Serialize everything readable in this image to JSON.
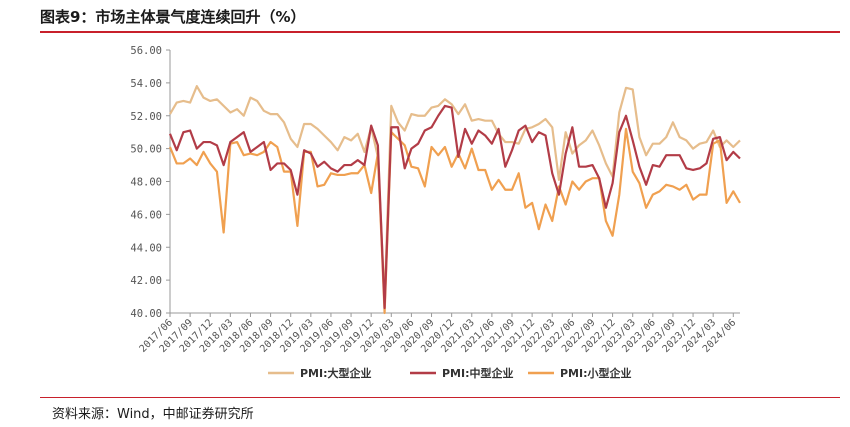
{
  "figure": {
    "title": "图表9：市场主体景气度连续回升（%）",
    "source": "资料来源：Wind，中邮证券研究所"
  },
  "chart_data": {
    "type": "line",
    "ylim": [
      40,
      56
    ],
    "yticks": [
      "56.00",
      "54.00",
      "52.00",
      "50.00",
      "48.00",
      "46.00",
      "44.00",
      "42.00",
      "40.00"
    ],
    "xtick_labels": [
      "2017/06",
      "2017/09",
      "2017/12",
      "2018/03",
      "2018/06",
      "2018/09",
      "2018/12",
      "2019/03",
      "2019/06",
      "2019/09",
      "2019/12",
      "2020/03",
      "2020/06",
      "2020/09",
      "2020/12",
      "2021/03",
      "2021/06",
      "2021/09",
      "2021/12",
      "2022/03",
      "2022/06",
      "2022/09",
      "2022/12",
      "2023/03",
      "2023/06",
      "2023/09",
      "2023/12",
      "2024/03",
      "2024/06"
    ],
    "legend_position": "bottom",
    "grid": false,
    "colors": {
      "large": "#e6bd8c",
      "medium": "#b23c47",
      "small": "#f0a050"
    },
    "series": [
      {
        "name": "PMI:大型企业",
        "key": "large",
        "values": [
          52.1,
          52.8,
          52.9,
          52.8,
          53.8,
          53.1,
          52.9,
          53.0,
          52.6,
          52.2,
          52.4,
          52.0,
          53.1,
          52.9,
          52.3,
          52.1,
          52.1,
          51.6,
          50.6,
          50.1,
          51.5,
          51.5,
          51.2,
          50.8,
          50.4,
          49.9,
          50.7,
          50.5,
          50.9,
          49.8,
          51.3,
          49.5,
          40.8,
          52.6,
          51.6,
          51.1,
          52.1,
          52.0,
          52.0,
          52.5,
          52.6,
          53.0,
          52.7,
          52.1,
          52.7,
          51.7,
          51.8,
          51.7,
          51.7,
          50.9,
          50.4,
          50.4,
          50.3,
          51.2,
          51.3,
          51.5,
          51.8,
          51.3,
          48.1,
          51.0,
          49.7,
          50.2,
          50.5,
          51.1,
          50.2,
          49.1,
          48.3,
          52.2,
          53.7,
          53.6,
          50.7,
          49.6,
          50.3,
          50.3,
          50.7,
          51.6,
          50.7,
          50.5,
          50.0,
          50.3,
          50.4,
          51.1,
          50.1,
          50.5,
          50.1,
          50.5
        ]
      },
      {
        "name": "PMI:中型企业",
        "key": "medium",
        "values": [
          50.9,
          49.9,
          51.0,
          51.1,
          50.0,
          50.4,
          50.4,
          50.2,
          49.0,
          50.4,
          50.7,
          51.0,
          49.8,
          50.1,
          50.4,
          48.7,
          49.1,
          49.1,
          48.7,
          47.2,
          49.9,
          49.7,
          48.9,
          49.2,
          48.8,
          48.6,
          49.0,
          49.0,
          49.3,
          49.0,
          51.4,
          50.2,
          40.3,
          51.3,
          51.3,
          48.8,
          50.0,
          50.3,
          51.1,
          51.3,
          52.0,
          52.6,
          52.5,
          49.5,
          51.2,
          50.3,
          51.1,
          50.8,
          50.3,
          51.2,
          48.9,
          49.9,
          51.1,
          51.4,
          50.4,
          51.0,
          50.8,
          48.5,
          47.2,
          49.7,
          51.3,
          48.9,
          48.9,
          49.0,
          48.2,
          46.4,
          47.9,
          51.0,
          52.0,
          50.5,
          48.9,
          47.8,
          49.0,
          48.9,
          49.6,
          49.6,
          49.6,
          48.8,
          48.7,
          48.8,
          49.1,
          50.6,
          50.7,
          49.3,
          49.8,
          49.4
        ]
      },
      {
        "name": "PMI:小型企业",
        "key": "small",
        "values": [
          50.1,
          49.1,
          49.1,
          49.4,
          49.0,
          49.8,
          49.1,
          48.6,
          44.9,
          50.3,
          50.4,
          49.6,
          49.7,
          49.6,
          49.8,
          50.4,
          50.1,
          48.6,
          48.6,
          45.3,
          49.8,
          49.8,
          47.7,
          47.8,
          48.5,
          48.4,
          48.4,
          48.5,
          48.5,
          49.0,
          47.3,
          49.7,
          40.0,
          51.0,
          50.6,
          50.2,
          48.9,
          48.8,
          47.7,
          50.1,
          49.6,
          50.1,
          48.9,
          49.7,
          48.8,
          50.0,
          48.7,
          48.7,
          47.5,
          48.1,
          47.5,
          47.5,
          48.5,
          46.4,
          46.7,
          45.1,
          46.6,
          45.6,
          47.7,
          46.6,
          48.0,
          47.5,
          48.0,
          48.2,
          48.2,
          45.6,
          44.7,
          47.2,
          51.2,
          48.6,
          47.9,
          46.4,
          47.2,
          47.4,
          47.8,
          47.7,
          47.5,
          47.8,
          46.9,
          47.2,
          47.2,
          50.3,
          50.5,
          46.7,
          47.4,
          46.7
        ]
      }
    ]
  }
}
